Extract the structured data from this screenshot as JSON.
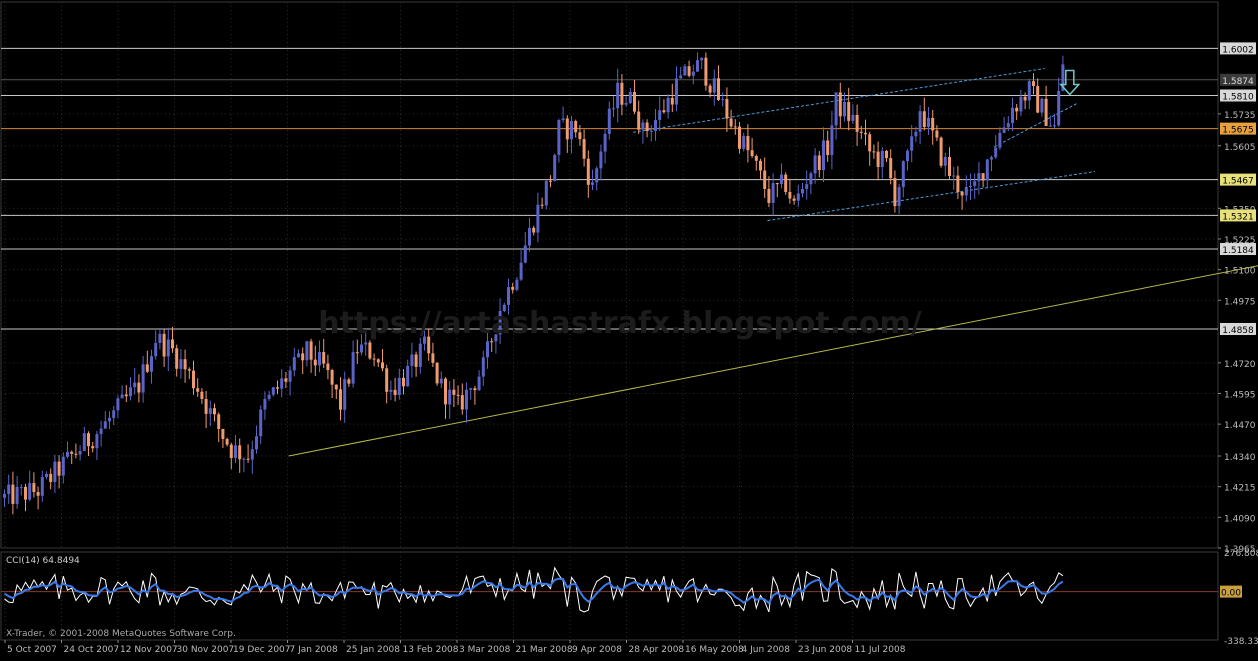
{
  "app": {
    "copyright": "X-Trader, © 2001-2008 MetaQuotes Software Corp.",
    "watermark": "https://artashastrafx.blogspot.com/"
  },
  "colors": {
    "background": "#000000",
    "grid": "#2b2b2b",
    "bull_candle": "#5a64c8",
    "bear_candle": "#f09a70",
    "hline": "#c8c8c8",
    "hline_orange": "#d8842c",
    "trendline_main": "#b8b84a",
    "channel": "#4a9ad8",
    "arrow": "#6fc9c9",
    "cci_main": "#ffffff",
    "cci_signal": "#3a7ae8",
    "cci_zero": "#8a3a2a"
  },
  "chart_data": [
    {
      "type": "candlestick",
      "instrument_note": "price chart with horizontal support/resistance levels and trendlines",
      "ylim": [
        1.3965,
        1.613
      ],
      "y_ticks": [
        "1.6002",
        "1.5874",
        "1.5810",
        "1.5735",
        "1.5675",
        "1.5605",
        "1.5467",
        "1.5350",
        "1.5321",
        "1.5225",
        "1.5184",
        "1.5100",
        "1.4975",
        "1.4858",
        "1.4720",
        "1.4595",
        "1.4470",
        "1.4340",
        "1.4215",
        "1.4090",
        "1.3965"
      ],
      "x_ticks": [
        "5 Oct 2007",
        "24 Oct 2007",
        "12 Nov 2007",
        "30 Nov 2007",
        "19 Dec 2007",
        "7 Jan 2008",
        "25 Jan 2008",
        "13 Feb 2008",
        "3 Mar 2008",
        "21 Mar 2008",
        "9 Apr 2008",
        "28 Apr 2008",
        "16 May 2008",
        "4 Jun 2008",
        "23 Jun 2008",
        "11 Jul 2008"
      ],
      "highlighted_levels": [
        {
          "value": 1.6002,
          "label": "1.6002",
          "style": "white"
        },
        {
          "value": 1.5874,
          "label": "1.5874",
          "style": "plain"
        },
        {
          "value": 1.581,
          "label": "1.5810",
          "style": "white"
        },
        {
          "value": 1.5675,
          "label": "1.5675",
          "style": "orange"
        },
        {
          "value": 1.5467,
          "label": "1.5467",
          "style": "yellow"
        },
        {
          "value": 1.5321,
          "label": "1.5321",
          "style": "yellow"
        },
        {
          "value": 1.5184,
          "label": "1.5184",
          "style": "white"
        },
        {
          "value": 1.4858,
          "label": "1.4858",
          "style": "white"
        }
      ],
      "trend_path": [
        [
          0,
          1.417
        ],
        [
          8,
          1.42
        ],
        [
          16,
          1.434
        ],
        [
          24,
          1.447
        ],
        [
          32,
          1.463
        ],
        [
          36,
          1.482
        ],
        [
          40,
          1.477
        ],
        [
          46,
          1.462
        ],
        [
          50,
          1.448
        ],
        [
          54,
          1.437
        ],
        [
          58,
          1.434
        ],
        [
          62,
          1.455
        ],
        [
          68,
          1.468
        ],
        [
          72,
          1.476
        ],
        [
          76,
          1.47
        ],
        [
          80,
          1.455
        ],
        [
          84,
          1.478
        ],
        [
          88,
          1.476
        ],
        [
          92,
          1.461
        ],
        [
          96,
          1.468
        ],
        [
          100,
          1.478
        ],
        [
          104,
          1.462
        ],
        [
          108,
          1.454
        ],
        [
          114,
          1.47
        ],
        [
          118,
          1.494
        ],
        [
          122,
          1.51
        ],
        [
          126,
          1.53
        ],
        [
          130,
          1.548
        ],
        [
          132,
          1.567
        ],
        [
          136,
          1.568
        ],
        [
          140,
          1.543
        ],
        [
          142,
          1.56
        ],
        [
          146,
          1.582
        ],
        [
          150,
          1.578
        ],
        [
          152,
          1.566
        ],
        [
          156,
          1.573
        ],
        [
          160,
          1.585
        ],
        [
          164,
          1.592
        ],
        [
          166,
          1.593
        ],
        [
          170,
          1.58
        ],
        [
          174,
          1.567
        ],
        [
          178,
          1.555
        ],
        [
          182,
          1.54
        ],
        [
          186,
          1.545
        ],
        [
          188,
          1.536
        ],
        [
          192,
          1.551
        ],
        [
          196,
          1.56
        ],
        [
          198,
          1.578
        ],
        [
          202,
          1.571
        ],
        [
          206,
          1.558
        ],
        [
          210,
          1.553
        ],
        [
          212,
          1.54
        ],
        [
          216,
          1.56
        ],
        [
          218,
          1.576
        ],
        [
          222,
          1.56
        ],
        [
          226,
          1.546
        ],
        [
          230,
          1.54
        ],
        [
          234,
          1.555
        ],
        [
          240,
          1.576
        ],
        [
          244,
          1.583
        ],
        [
          246,
          1.578
        ],
        [
          250,
          1.568
        ],
        [
          252,
          1.594
        ]
      ],
      "channel_lines": [
        {
          "name": "upper-channel",
          "points": [
            [
              150,
              1.566
            ],
            [
              248,
              1.592
            ]
          ]
        },
        {
          "name": "lower-channel",
          "points": [
            [
              182,
              1.53
            ],
            [
              260,
              1.55
            ]
          ]
        },
        {
          "name": "rising-support",
          "points": [
            [
              236,
              1.56
            ],
            [
              256,
              1.578
            ]
          ]
        }
      ],
      "main_trendline": {
        "points": [
          [
            68,
            1.434
          ],
          [
            300,
            1.512
          ]
        ]
      },
      "arrow": {
        "direction": "down",
        "at": [
          254,
          1.5855
        ]
      }
    },
    {
      "type": "line",
      "title": "CCI(14) 64.8494",
      "y_ticks": [
        "276.808",
        "0.00",
        "-338.333"
      ],
      "ylim": [
        -338.333,
        276.808
      ],
      "zero_label": "0.00",
      "series": [
        {
          "color": "white"
        },
        {
          "color": "blue"
        }
      ]
    }
  ]
}
